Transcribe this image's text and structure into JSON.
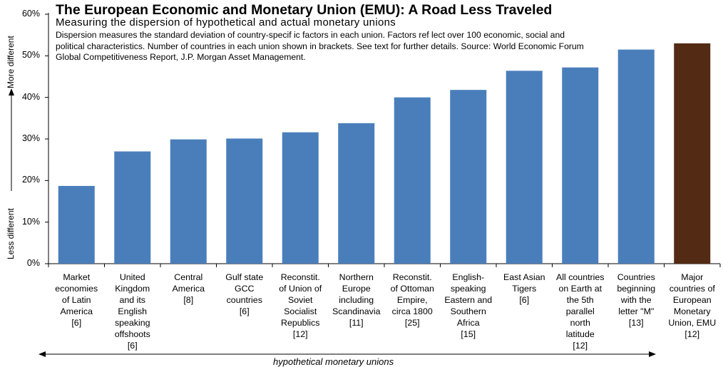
{
  "chart_data": {
    "type": "bar",
    "title": "The European Economic and Monetary Union (EMU): A Road Less Traveled",
    "subtitle": "Measuring the dispersion of hypothetical and actual monetary unions",
    "note": "Dispersion measures the standard deviation of country-specif ic factors in each union.  Factors ref lect over 100 economic, social and political characteristics.  Number of countries in each union shown in brackets.  See text for further details.  Source:  World Economic Forum Global Competitiveness Report, J.P. Morgan Asset Management.",
    "ylabel_top": "More different",
    "ylabel_bottom": "Less different",
    "bottom_label": "hypothetical monetary unions",
    "ylim": [
      0,
      60
    ],
    "yticks": [
      "0%",
      "10%",
      "20%",
      "30%",
      "40%",
      "50%",
      "60%"
    ],
    "categories": [
      "Market economies of Latin America [6]",
      "United Kingdom and its English speaking offshoots [6]",
      "Central America [8]",
      "Gulf state GCC countries [6]",
      "Reconstit. of Union of Soviet Socialist Republics [12]",
      "Northern Europe including Scandinavia [11]",
      "Reconstit. of Ottoman Empire, circa 1800 [25]",
      "English-speaking Eastern and Southern Africa [15]",
      "East Asian Tigers [6]",
      "All countries on Earth at the 5th parallel north latitude [12]",
      "Countries beginning with the letter \"M\" [13]",
      "Major countries of European Monetary Union, EMU [12]"
    ],
    "category_lines": [
      [
        "Market",
        "economies",
        "of Latin",
        "America",
        "[6]"
      ],
      [
        "United",
        "Kingdom",
        "and its",
        "English",
        "speaking",
        "offshoots",
        "[6]"
      ],
      [
        "Central",
        "America",
        "[8]"
      ],
      [
        "Gulf state",
        "GCC",
        "countries",
        "[6]"
      ],
      [
        "Reconstit.",
        "of Union of",
        "Soviet",
        "Socialist",
        "Republics",
        "[12]"
      ],
      [
        "Northern",
        "Europe",
        "including",
        "Scandinavia",
        "[11]"
      ],
      [
        "Reconstit.",
        "of Ottoman",
        "Empire,",
        "circa 1800",
        "[25]"
      ],
      [
        "English-",
        "speaking",
        "Eastern and",
        "Southern",
        "Africa",
        "[15]"
      ],
      [
        "East Asian",
        "Tigers",
        "[6]"
      ],
      [
        "All countries",
        "on Earth at",
        "the 5th",
        "parallel",
        "north",
        "latitude",
        "[12]"
      ],
      [
        "Countries",
        "beginning",
        "with the",
        "letter \"M\"",
        "[13]"
      ],
      [
        "Major",
        "countries of",
        "European",
        "Monetary",
        "Union, EMU",
        "[12]"
      ]
    ],
    "values": [
      18.7,
      27.0,
      29.9,
      30.1,
      31.6,
      33.8,
      40.0,
      41.8,
      46.4,
      47.2,
      51.5,
      53.0
    ],
    "colors": {
      "bar": "#4a7ebb",
      "highlight": "#532a14",
      "axis": "#000000"
    },
    "highlight_index": 11
  }
}
